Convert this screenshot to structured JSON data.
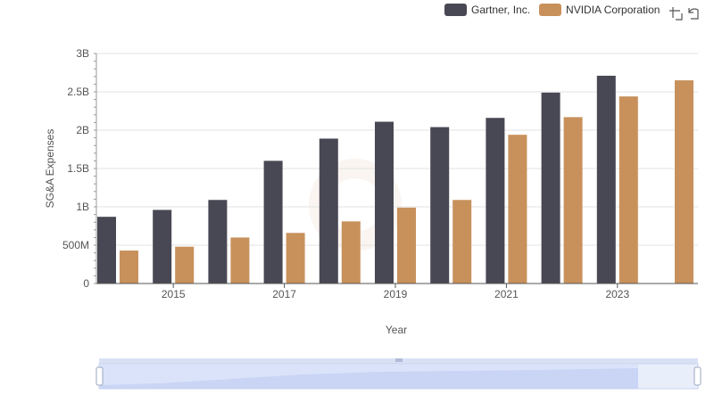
{
  "legend": [
    {
      "name": "Gartner, Inc.",
      "color": "#484854"
    },
    {
      "name": "NVIDIA Corporation",
      "color": "#c8915c"
    }
  ],
  "toolbox": {
    "icons": [
      "zoom-icon",
      "restore-icon"
    ]
  },
  "chart_data": {
    "type": "bar",
    "xlabel": "Year",
    "ylabel": "SG&A Expenses",
    "categories": [
      "2014",
      "2015",
      "2016",
      "2017",
      "2018",
      "2019",
      "2020",
      "2021",
      "2022",
      "2023",
      "2024"
    ],
    "x_tick_labels": [
      "2015",
      "2017",
      "2019",
      "2021",
      "2023"
    ],
    "y_tick_labels": [
      "0",
      "500M",
      "1B",
      "1.5B",
      "2B",
      "2.5B",
      "3B"
    ],
    "ylim": [
      0,
      3000000000
    ],
    "grid": true,
    "legend_position": "top-right",
    "series": [
      {
        "name": "Gartner, Inc.",
        "color": "#484854",
        "values": [
          870000000,
          960000000,
          1090000000,
          1600000000,
          1890000000,
          2110000000,
          2040000000,
          2160000000,
          2490000000,
          2710000000,
          null
        ]
      },
      {
        "name": "NVIDIA Corporation",
        "color": "#c8915c",
        "values": [
          430000000,
          480000000,
          600000000,
          660000000,
          810000000,
          990000000,
          1090000000,
          1940000000,
          2170000000,
          2440000000,
          2650000000
        ]
      }
    ]
  }
}
